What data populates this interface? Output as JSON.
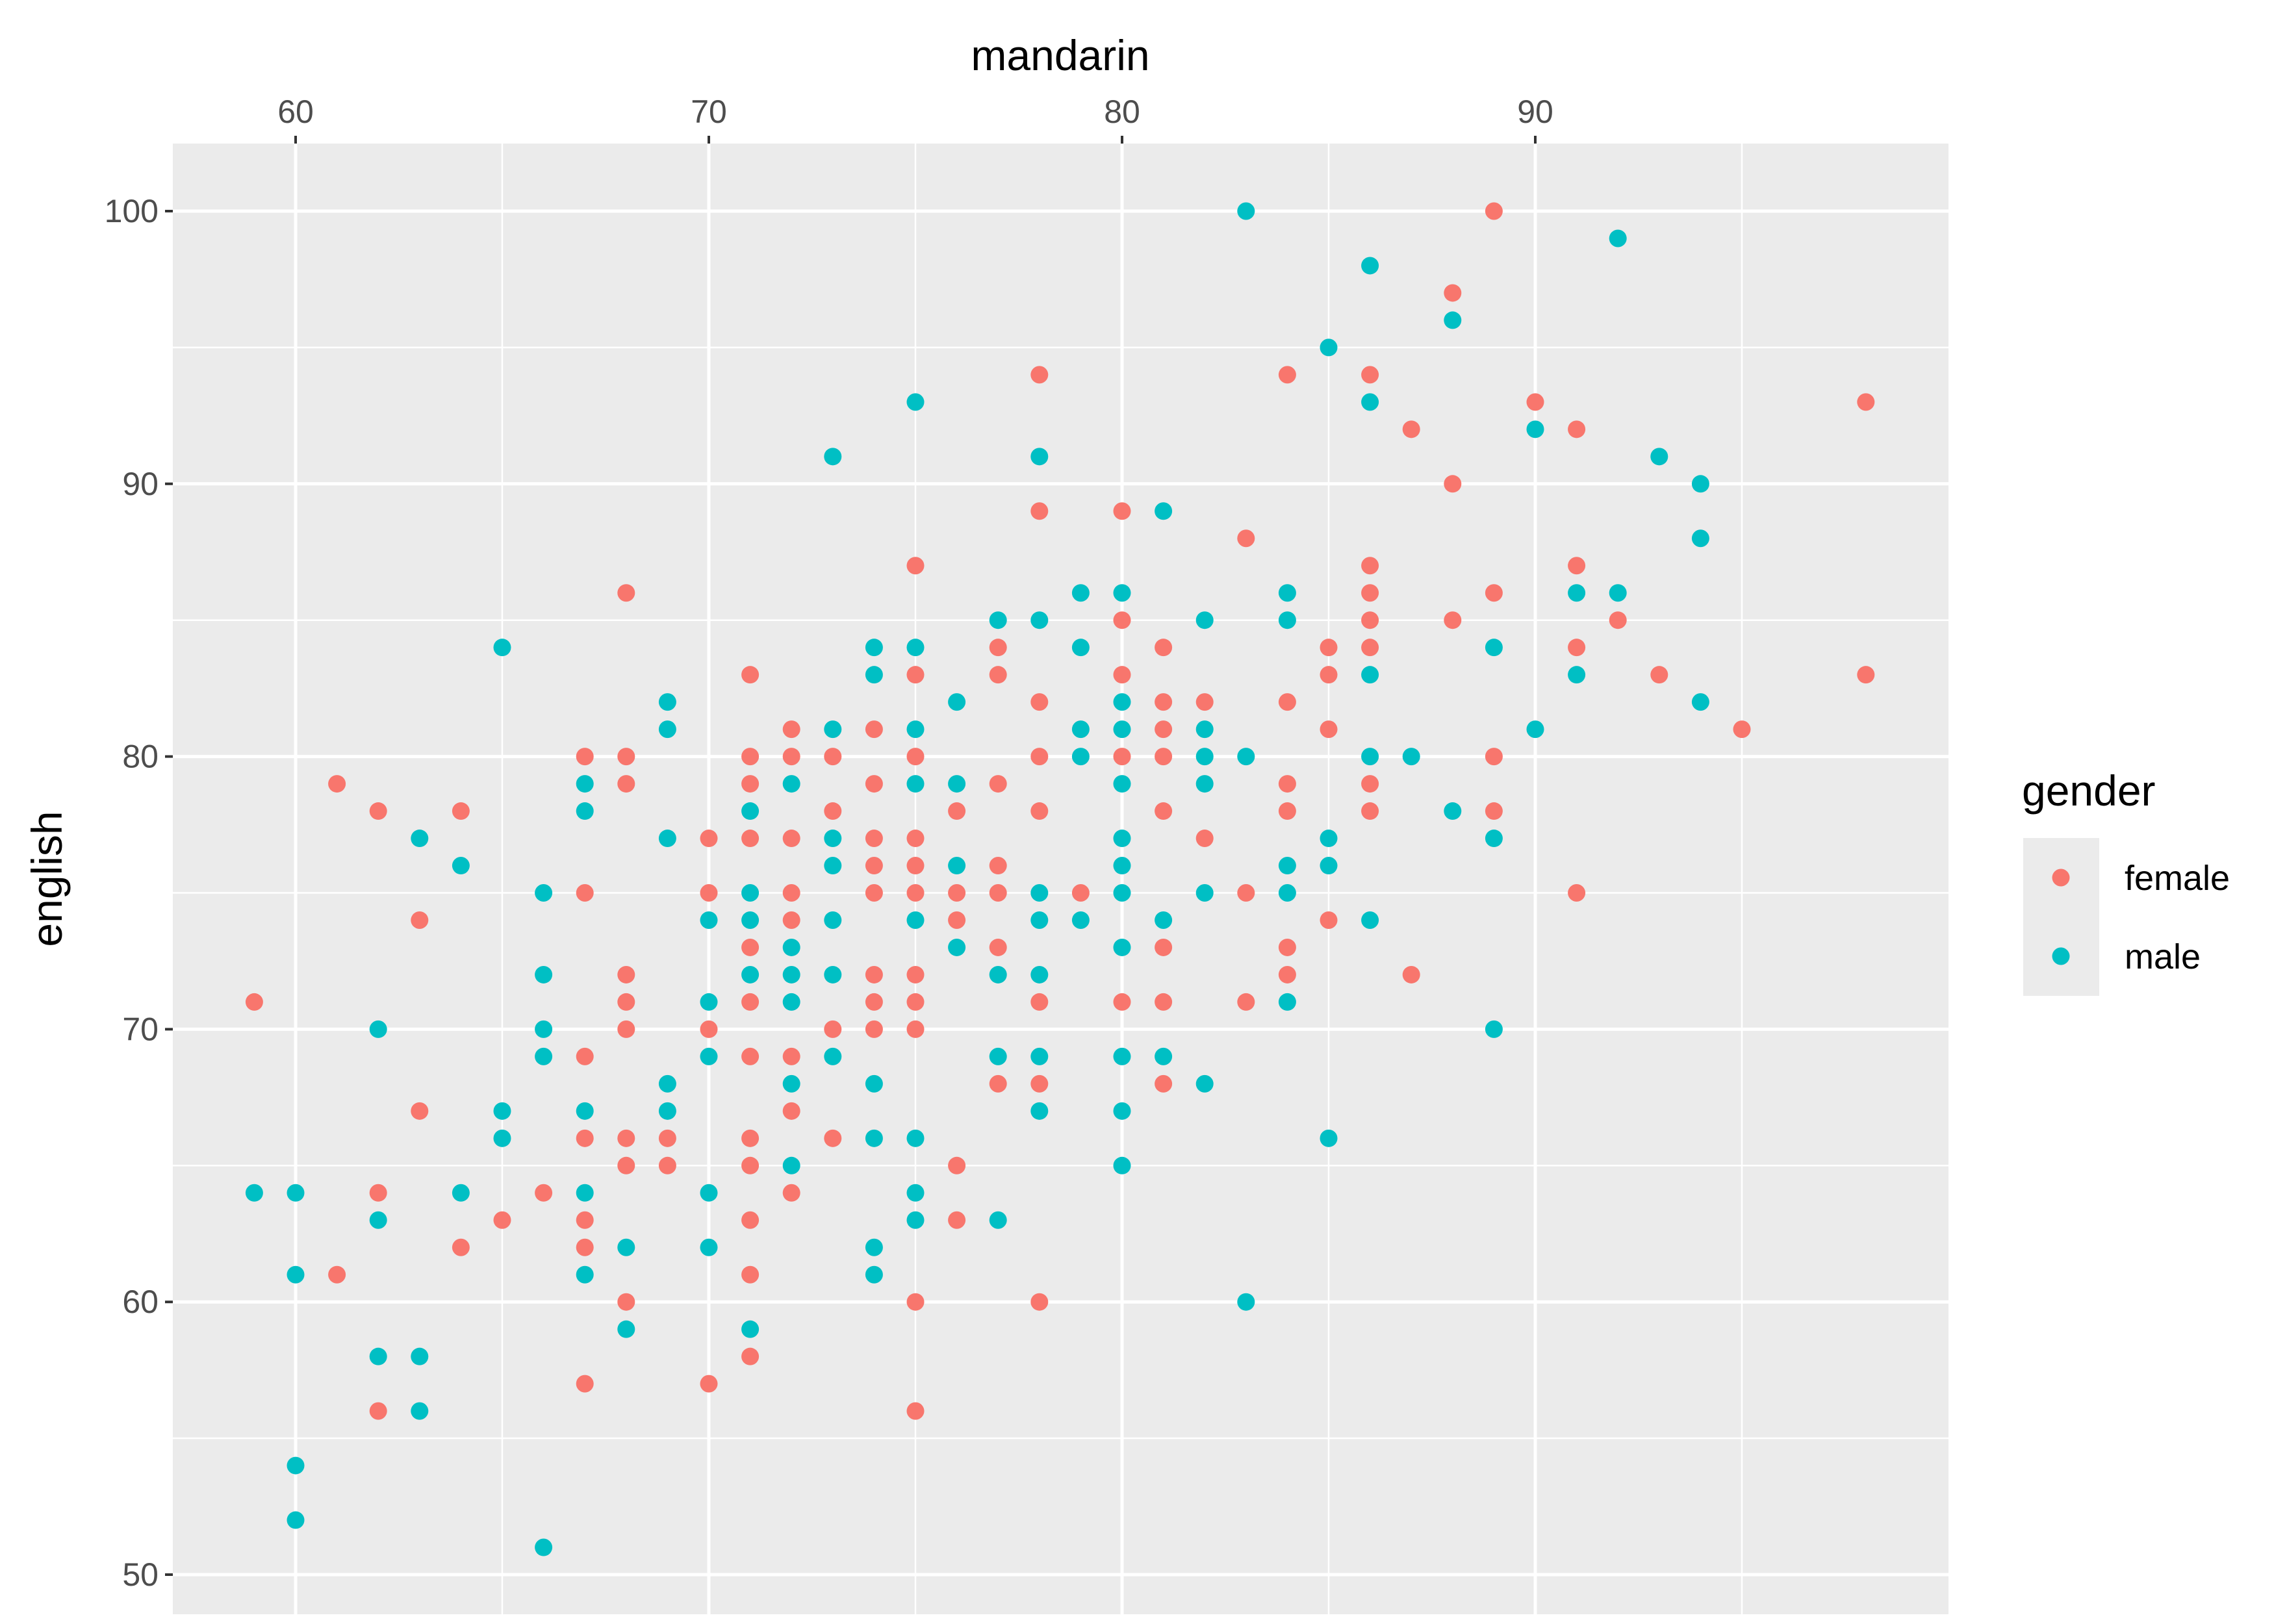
{
  "chart_data": {
    "type": "scatter",
    "xlabel": "mandarin",
    "ylabel": "english",
    "x_axis_position": "top",
    "xlim": [
      57,
      100
    ],
    "ylim": [
      48.5,
      102.5
    ],
    "xticks": [
      60,
      70,
      80,
      90
    ],
    "yticks": [
      50,
      60,
      70,
      80,
      90,
      100
    ],
    "grid": true,
    "legend": {
      "title": "gender",
      "placement": "right"
    },
    "series": [
      {
        "name": "female",
        "color": "#F8766D",
        "points": [
          [
            59,
            71
          ],
          [
            61,
            79
          ],
          [
            61,
            61
          ],
          [
            62,
            78
          ],
          [
            62,
            64
          ],
          [
            62,
            56
          ],
          [
            63,
            74
          ],
          [
            63,
            67
          ],
          [
            64,
            78
          ],
          [
            64,
            62
          ],
          [
            65,
            63
          ],
          [
            66,
            64
          ],
          [
            67,
            80
          ],
          [
            67,
            75
          ],
          [
            67,
            69
          ],
          [
            67,
            66
          ],
          [
            67,
            63
          ],
          [
            67,
            62
          ],
          [
            67,
            57
          ],
          [
            68,
            86
          ],
          [
            68,
            80
          ],
          [
            68,
            79
          ],
          [
            68,
            72
          ],
          [
            68,
            71
          ],
          [
            68,
            70
          ],
          [
            68,
            66
          ],
          [
            68,
            65
          ],
          [
            68,
            60
          ],
          [
            69,
            66
          ],
          [
            69,
            65
          ],
          [
            70,
            77
          ],
          [
            70,
            75
          ],
          [
            70,
            70
          ],
          [
            70,
            57
          ],
          [
            71,
            83
          ],
          [
            71,
            80
          ],
          [
            71,
            79
          ],
          [
            71,
            77
          ],
          [
            71,
            73
          ],
          [
            71,
            71
          ],
          [
            71,
            69
          ],
          [
            71,
            66
          ],
          [
            71,
            65
          ],
          [
            71,
            63
          ],
          [
            71,
            61
          ],
          [
            71,
            58
          ],
          [
            72,
            81
          ],
          [
            72,
            80
          ],
          [
            72,
            77
          ],
          [
            72,
            75
          ],
          [
            72,
            74
          ],
          [
            72,
            69
          ],
          [
            72,
            67
          ],
          [
            72,
            64
          ],
          [
            73,
            80
          ],
          [
            73,
            78
          ],
          [
            73,
            70
          ],
          [
            73,
            66
          ],
          [
            74,
            81
          ],
          [
            74,
            79
          ],
          [
            74,
            77
          ],
          [
            74,
            76
          ],
          [
            74,
            75
          ],
          [
            74,
            72
          ],
          [
            74,
            71
          ],
          [
            74,
            70
          ],
          [
            75,
            87
          ],
          [
            75,
            83
          ],
          [
            75,
            80
          ],
          [
            75,
            77
          ],
          [
            75,
            76
          ],
          [
            75,
            75
          ],
          [
            75,
            72
          ],
          [
            75,
            71
          ],
          [
            75,
            70
          ],
          [
            75,
            60
          ],
          [
            75,
            56
          ],
          [
            76,
            78
          ],
          [
            76,
            75
          ],
          [
            76,
            74
          ],
          [
            76,
            65
          ],
          [
            76,
            63
          ],
          [
            77,
            84
          ],
          [
            77,
            83
          ],
          [
            77,
            79
          ],
          [
            77,
            76
          ],
          [
            77,
            75
          ],
          [
            77,
            73
          ],
          [
            77,
            68
          ],
          [
            78,
            94
          ],
          [
            78,
            89
          ],
          [
            78,
            82
          ],
          [
            78,
            80
          ],
          [
            78,
            78
          ],
          [
            78,
            71
          ],
          [
            78,
            68
          ],
          [
            78,
            60
          ],
          [
            79,
            75
          ],
          [
            80,
            89
          ],
          [
            80,
            85
          ],
          [
            80,
            83
          ],
          [
            80,
            80
          ],
          [
            80,
            71
          ],
          [
            81,
            84
          ],
          [
            81,
            82
          ],
          [
            81,
            81
          ],
          [
            81,
            80
          ],
          [
            81,
            78
          ],
          [
            81,
            73
          ],
          [
            81,
            71
          ],
          [
            81,
            68
          ],
          [
            82,
            82
          ],
          [
            82,
            77
          ],
          [
            83,
            88
          ],
          [
            83,
            75
          ],
          [
            83,
            71
          ],
          [
            84,
            94
          ],
          [
            84,
            82
          ],
          [
            84,
            79
          ],
          [
            84,
            78
          ],
          [
            84,
            73
          ],
          [
            84,
            72
          ],
          [
            85,
            84
          ],
          [
            85,
            83
          ],
          [
            85,
            81
          ],
          [
            85,
            74
          ],
          [
            86,
            94
          ],
          [
            86,
            87
          ],
          [
            86,
            86
          ],
          [
            86,
            85
          ],
          [
            86,
            84
          ],
          [
            86,
            79
          ],
          [
            86,
            78
          ],
          [
            87,
            92
          ],
          [
            87,
            72
          ],
          [
            88,
            97
          ],
          [
            88,
            90
          ],
          [
            88,
            85
          ],
          [
            89,
            100
          ],
          [
            89,
            86
          ],
          [
            89,
            80
          ],
          [
            89,
            78
          ],
          [
            90,
            93
          ],
          [
            91,
            92
          ],
          [
            91,
            87
          ],
          [
            91,
            84
          ],
          [
            91,
            75
          ],
          [
            92,
            85
          ],
          [
            93,
            83
          ],
          [
            95,
            81
          ],
          [
            98,
            93
          ],
          [
            98,
            83
          ]
        ]
      },
      {
        "name": "male",
        "color": "#00BFC4",
        "points": [
          [
            59,
            64
          ],
          [
            60,
            64
          ],
          [
            60,
            61
          ],
          [
            60,
            54
          ],
          [
            60,
            52
          ],
          [
            62,
            70
          ],
          [
            62,
            63
          ],
          [
            62,
            58
          ],
          [
            63,
            77
          ],
          [
            63,
            58
          ],
          [
            63,
            56
          ],
          [
            64,
            76
          ],
          [
            64,
            64
          ],
          [
            65,
            84
          ],
          [
            65,
            67
          ],
          [
            65,
            66
          ],
          [
            66,
            75
          ],
          [
            66,
            72
          ],
          [
            66,
            70
          ],
          [
            66,
            69
          ],
          [
            66,
            51
          ],
          [
            67,
            79
          ],
          [
            67,
            78
          ],
          [
            67,
            67
          ],
          [
            67,
            64
          ],
          [
            67,
            61
          ],
          [
            68,
            62
          ],
          [
            68,
            59
          ],
          [
            69,
            82
          ],
          [
            69,
            81
          ],
          [
            69,
            77
          ],
          [
            69,
            68
          ],
          [
            69,
            67
          ],
          [
            70,
            74
          ],
          [
            70,
            71
          ],
          [
            70,
            69
          ],
          [
            70,
            64
          ],
          [
            70,
            62
          ],
          [
            71,
            78
          ],
          [
            71,
            75
          ],
          [
            71,
            74
          ],
          [
            71,
            72
          ],
          [
            71,
            59
          ],
          [
            72,
            79
          ],
          [
            72,
            73
          ],
          [
            72,
            72
          ],
          [
            72,
            71
          ],
          [
            72,
            68
          ],
          [
            72,
            65
          ],
          [
            73,
            91
          ],
          [
            73,
            81
          ],
          [
            73,
            77
          ],
          [
            73,
            76
          ],
          [
            73,
            74
          ],
          [
            73,
            72
          ],
          [
            73,
            69
          ],
          [
            74,
            84
          ],
          [
            74,
            83
          ],
          [
            74,
            68
          ],
          [
            74,
            66
          ],
          [
            74,
            62
          ],
          [
            74,
            61
          ],
          [
            75,
            93
          ],
          [
            75,
            84
          ],
          [
            75,
            81
          ],
          [
            75,
            79
          ],
          [
            75,
            74
          ],
          [
            75,
            66
          ],
          [
            75,
            64
          ],
          [
            75,
            63
          ],
          [
            76,
            82
          ],
          [
            76,
            79
          ],
          [
            76,
            76
          ],
          [
            76,
            73
          ],
          [
            77,
            85
          ],
          [
            77,
            72
          ],
          [
            77,
            69
          ],
          [
            77,
            63
          ],
          [
            78,
            91
          ],
          [
            78,
            85
          ],
          [
            78,
            75
          ],
          [
            78,
            74
          ],
          [
            78,
            72
          ],
          [
            78,
            69
          ],
          [
            78,
            67
          ],
          [
            79,
            86
          ],
          [
            79,
            84
          ],
          [
            79,
            81
          ],
          [
            79,
            80
          ],
          [
            79,
            74
          ],
          [
            80,
            86
          ],
          [
            80,
            82
          ],
          [
            80,
            81
          ],
          [
            80,
            79
          ],
          [
            80,
            77
          ],
          [
            80,
            76
          ],
          [
            80,
            75
          ],
          [
            80,
            73
          ],
          [
            80,
            69
          ],
          [
            80,
            67
          ],
          [
            80,
            65
          ],
          [
            81,
            89
          ],
          [
            81,
            74
          ],
          [
            81,
            69
          ],
          [
            82,
            85
          ],
          [
            82,
            81
          ],
          [
            82,
            80
          ],
          [
            82,
            79
          ],
          [
            82,
            75
          ],
          [
            82,
            68
          ],
          [
            83,
            100
          ],
          [
            83,
            80
          ],
          [
            83,
            60
          ],
          [
            84,
            86
          ],
          [
            84,
            85
          ],
          [
            84,
            76
          ],
          [
            84,
            75
          ],
          [
            84,
            71
          ],
          [
            85,
            95
          ],
          [
            85,
            77
          ],
          [
            85,
            76
          ],
          [
            85,
            66
          ],
          [
            86,
            98
          ],
          [
            86,
            93
          ],
          [
            86,
            83
          ],
          [
            86,
            80
          ],
          [
            86,
            74
          ],
          [
            87,
            80
          ],
          [
            88,
            96
          ],
          [
            88,
            78
          ],
          [
            89,
            84
          ],
          [
            89,
            77
          ],
          [
            89,
            70
          ],
          [
            90,
            92
          ],
          [
            90,
            81
          ],
          [
            91,
            86
          ],
          [
            91,
            83
          ],
          [
            92,
            99
          ],
          [
            92,
            86
          ],
          [
            93,
            91
          ],
          [
            94,
            90
          ],
          [
            94,
            88
          ],
          [
            94,
            82
          ]
        ]
      }
    ]
  }
}
